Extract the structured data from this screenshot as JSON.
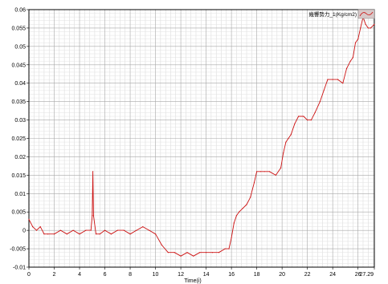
{
  "chart_data": {
    "type": "line",
    "title": "",
    "xlabel": "Time(i)",
    "ylabel": "",
    "xlim": [
      0,
      27.29
    ],
    "ylim": [
      -0.01,
      0.06
    ],
    "x_ticks": [
      "0",
      "2",
      "4",
      "6",
      "8",
      "10",
      "12",
      "14",
      "16",
      "18",
      "20",
      "22",
      "24",
      "26",
      "27.29"
    ],
    "y_ticks": [
      "0.06",
      "0.055",
      "0.05",
      "0.045",
      "0.04",
      "0.035",
      "0.03",
      "0.025",
      "0.02",
      "0.015",
      "0.01",
      "0.005",
      "0",
      "-0.005",
      "-0.01"
    ],
    "grid": true,
    "legend_position": "top-right",
    "series": [
      {
        "name": "幾響勢力_1(Kg/cm2)",
        "color": "#cc1111",
        "x": [
          0,
          0.3,
          0.6,
          0.9,
          1.2,
          1.5,
          2,
          2.5,
          3,
          3.5,
          4,
          4.5,
          4.9,
          5.0,
          5.05,
          5.1,
          5.3,
          5.6,
          6,
          6.5,
          7,
          7.5,
          8,
          8.5,
          9,
          9.5,
          10,
          10.5,
          11,
          11.5,
          12,
          12.5,
          13,
          13.5,
          14,
          14.5,
          15,
          15.5,
          15.8,
          16.0,
          16.2,
          16.4,
          16.6,
          16.9,
          17.2,
          17.5,
          17.8,
          18.0,
          18.3,
          18.6,
          19,
          19.5,
          19.9,
          20.1,
          20.3,
          20.5,
          20.7,
          21.0,
          21.3,
          21.7,
          22.0,
          22.3,
          22.6,
          23.0,
          23.3,
          23.6,
          24.0,
          24.4,
          24.8,
          25.1,
          25.4,
          25.6,
          25.8,
          26.0,
          26.2,
          26.4,
          26.6,
          26.8,
          27.0,
          27.29
        ],
        "values": [
          0.003,
          0.001,
          0.0,
          0.001,
          -0.001,
          -0.001,
          -0.001,
          0.0,
          -0.001,
          0.0,
          -0.001,
          0.0,
          0.0,
          0.004,
          0.016,
          0.004,
          -0.001,
          -0.001,
          0.0,
          -0.001,
          0.0,
          0.0,
          -0.001,
          0.0,
          0.001,
          0.0,
          -0.001,
          -0.004,
          -0.006,
          -0.006,
          -0.007,
          -0.006,
          -0.007,
          -0.006,
          -0.006,
          -0.006,
          -0.006,
          -0.005,
          -0.005,
          -0.002,
          0.002,
          0.004,
          0.005,
          0.006,
          0.007,
          0.009,
          0.013,
          0.016,
          0.016,
          0.016,
          0.016,
          0.015,
          0.017,
          0.021,
          0.024,
          0.025,
          0.026,
          0.029,
          0.031,
          0.031,
          0.03,
          0.03,
          0.032,
          0.035,
          0.038,
          0.041,
          0.041,
          0.041,
          0.04,
          0.044,
          0.046,
          0.047,
          0.051,
          0.052,
          0.055,
          0.058,
          0.056,
          0.055,
          0.055,
          0.056
        ]
      }
    ]
  }
}
